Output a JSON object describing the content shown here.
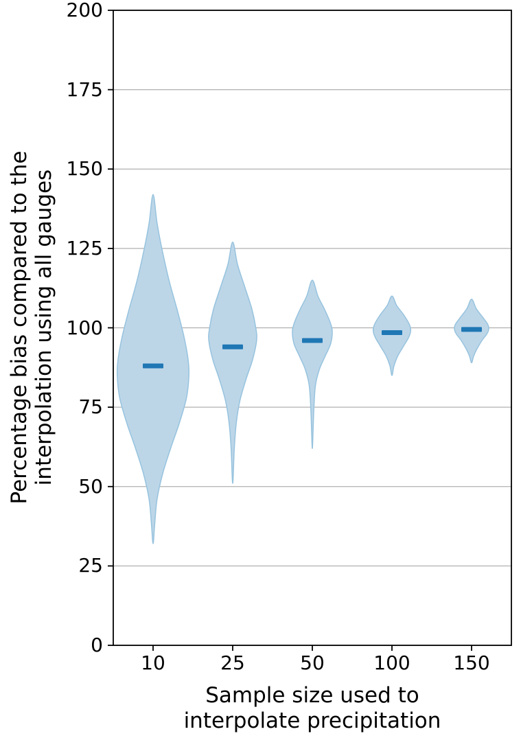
{
  "figure": {
    "background": "#ffffff"
  },
  "chart_data": {
    "type": "violin",
    "title": "",
    "xlabel": "Sample size used to\ninterpolate precipitation",
    "ylabel": "Percentage bias compared to the\ninterpolation using all gauges",
    "categories": [
      "10",
      "25",
      "50",
      "100",
      "150"
    ],
    "ylim": [
      0,
      200
    ],
    "yticks": [
      0,
      25,
      50,
      75,
      100,
      125,
      150,
      175,
      200
    ],
    "grid": "horizontal",
    "legend": "none",
    "colors": {
      "violin_fill": "#bcd6e8",
      "violin_edge": "#97c3de",
      "median": "#1f77b4",
      "grid": "#b0b0b0",
      "axis": "#000000",
      "text": "#000000"
    },
    "violins": [
      {
        "category": "10",
        "median": 88,
        "min": 32,
        "max": 142,
        "profile": [
          [
            142,
            0
          ],
          [
            133,
            0.1
          ],
          [
            125,
            0.22
          ],
          [
            115,
            0.4
          ],
          [
            105,
            0.62
          ],
          [
            97,
            0.78
          ],
          [
            90,
            0.88
          ],
          [
            85,
            0.9
          ],
          [
            78,
            0.84
          ],
          [
            70,
            0.66
          ],
          [
            62,
            0.44
          ],
          [
            54,
            0.24
          ],
          [
            46,
            0.1
          ],
          [
            38,
            0.04
          ],
          [
            32,
            0
          ]
        ]
      },
      {
        "category": "25",
        "median": 94,
        "min": 51,
        "max": 127,
        "profile": [
          [
            127,
            0
          ],
          [
            120,
            0.12
          ],
          [
            113,
            0.3
          ],
          [
            106,
            0.48
          ],
          [
            100,
            0.58
          ],
          [
            96,
            0.6
          ],
          [
            90,
            0.5
          ],
          [
            84,
            0.34
          ],
          [
            77,
            0.18
          ],
          [
            70,
            0.09
          ],
          [
            62,
            0.04
          ],
          [
            51,
            0
          ]
        ]
      },
      {
        "category": "50",
        "median": 96,
        "min": 62,
        "max": 115,
        "profile": [
          [
            115,
            0
          ],
          [
            110,
            0.14
          ],
          [
            106,
            0.3
          ],
          [
            102,
            0.44
          ],
          [
            99,
            0.5
          ],
          [
            95,
            0.46
          ],
          [
            91,
            0.32
          ],
          [
            87,
            0.18
          ],
          [
            82,
            0.08
          ],
          [
            75,
            0.04
          ],
          [
            68,
            0.02
          ],
          [
            62,
            0
          ]
        ]
      },
      {
        "category": "100",
        "median": 98.5,
        "min": 85,
        "max": 110,
        "profile": [
          [
            110,
            0
          ],
          [
            107,
            0.12
          ],
          [
            104,
            0.3
          ],
          [
            101,
            0.44
          ],
          [
            99,
            0.47
          ],
          [
            97,
            0.42
          ],
          [
            94,
            0.28
          ],
          [
            91,
            0.14
          ],
          [
            88,
            0.05
          ],
          [
            85,
            0
          ]
        ]
      },
      {
        "category": "150",
        "median": 99.5,
        "min": 89,
        "max": 109,
        "profile": [
          [
            109,
            0
          ],
          [
            106,
            0.12
          ],
          [
            103,
            0.3
          ],
          [
            101,
            0.41
          ],
          [
            99.5,
            0.43
          ],
          [
            98,
            0.38
          ],
          [
            96,
            0.26
          ],
          [
            93,
            0.12
          ],
          [
            91,
            0.05
          ],
          [
            89,
            0
          ]
        ]
      }
    ]
  }
}
